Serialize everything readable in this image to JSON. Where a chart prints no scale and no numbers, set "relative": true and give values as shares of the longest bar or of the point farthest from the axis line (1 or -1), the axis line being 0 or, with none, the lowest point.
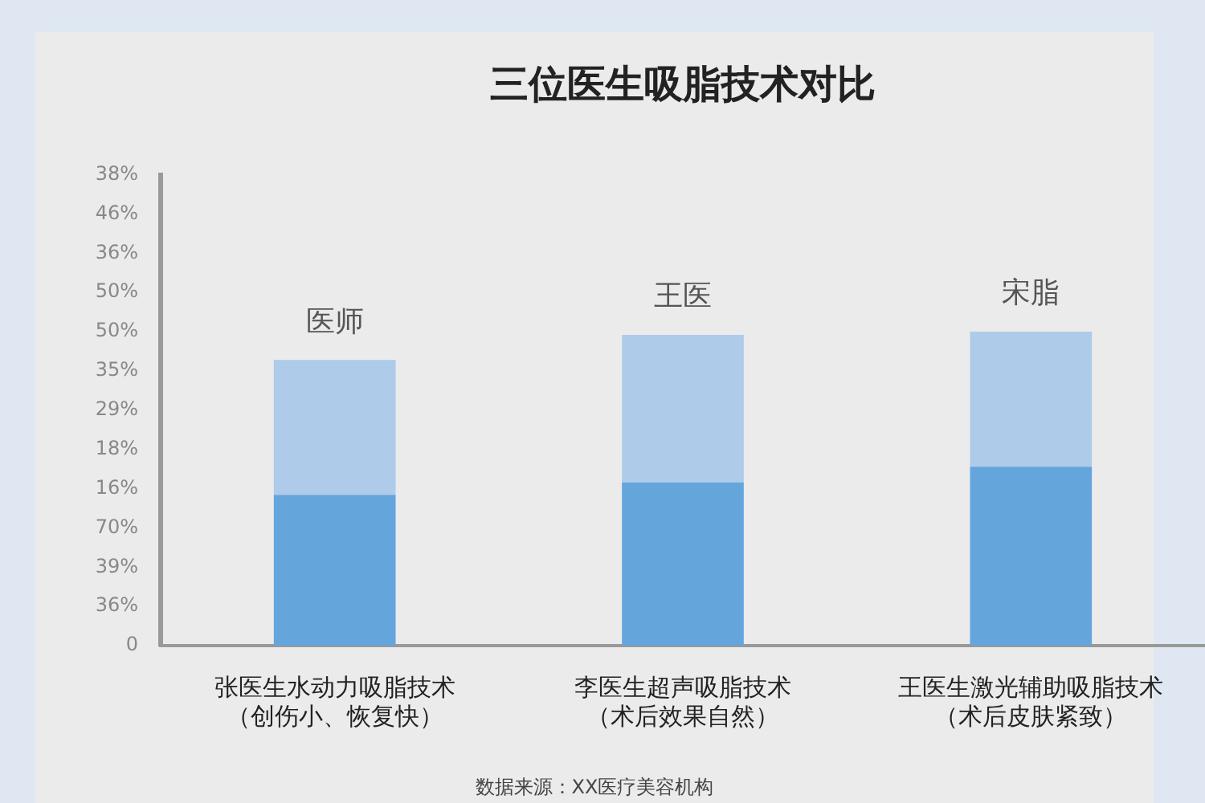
{
  "chart_data": {
    "type": "bar",
    "title": "三位医生吸脂技术对比",
    "stacked": true,
    "relative": true,
    "legend": false,
    "categories": [
      "张医生水动力吸脂技术（创伤小、恢复快）",
      "李医生超声吸脂技术（术后效果自然）",
      "王医生激光辅助吸脂技术（术后皮肤紧致）"
    ],
    "series": [
      {
        "color": "#64a5dc",
        "values": [
          0.48,
          0.52,
          0.57
        ]
      },
      {
        "color": "#aecbe9",
        "values": [
          0.43,
          0.47,
          0.43
        ]
      }
    ],
    "annotations": [
      {
        "text": "医师",
        "x": "张医生水动力吸脂技术（创伤小、恢复快）",
        "y": 0.91
      },
      {
        "text": "王医",
        "x": "李医生超声吸脂技术（术后效果自然）",
        "y": 0.99
      },
      {
        "text": "宋脂",
        "x": "王医生激光辅助吸脂技术（术后皮肤紧致）",
        "y": 1.0
      },
      "38%",
      "46%",
      "36%",
      "50%",
      "50%",
      "35%",
      "29%",
      "18%",
      "16%",
      "70%",
      "39%",
      "36%",
      "0",
      "数据来源：XX医疗美容机构"
    ]
  }
}
